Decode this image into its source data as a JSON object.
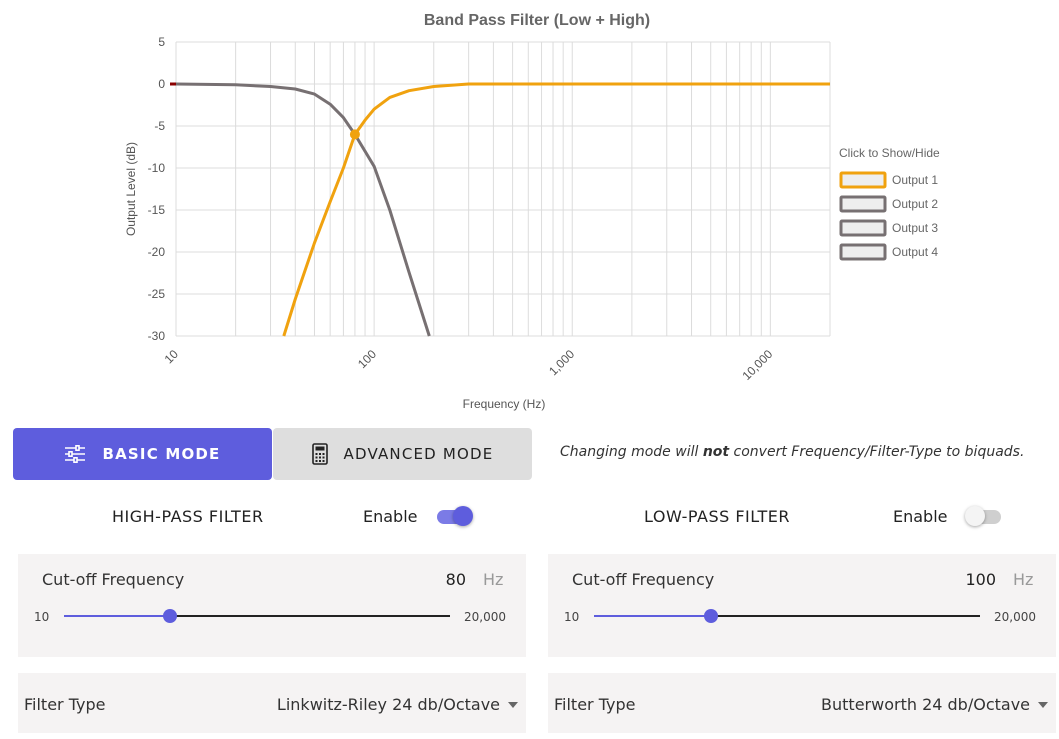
{
  "chart_data": {
    "type": "line",
    "title": "Band Pass Filter (Low + High)",
    "xlabel": "Frequency (Hz)",
    "ylabel": "Output Level (dB)",
    "x_scale": "log",
    "xlim": [
      10,
      20000
    ],
    "ylim": [
      -30,
      5
    ],
    "y_ticks": [
      5,
      0,
      -5,
      -10,
      -15,
      -20,
      -25,
      -30
    ],
    "x_ticks": [
      10,
      100,
      1000,
      10000
    ],
    "x_tick_labels": [
      "10",
      "100",
      "1,000",
      "10,000"
    ],
    "grid": true,
    "legend_position": "right",
    "legend_title": "Click to Show/Hide",
    "series": [
      {
        "name": "Output 1",
        "color": "#f0a20f",
        "active": true,
        "x": [
          35,
          40,
          50,
          60,
          70,
          80,
          90,
          100,
          120,
          150,
          200,
          300,
          1000,
          10000,
          20000
        ],
        "values": [
          -30,
          -25.6,
          -18.9,
          -14.0,
          -10.0,
          -6.0,
          -4.3,
          -3.0,
          -1.6,
          -0.8,
          -0.3,
          0,
          0,
          0,
          0
        ]
      },
      {
        "name": "Output 2",
        "color": "#777072",
        "active": false,
        "x": [
          10,
          20,
          30,
          40,
          50,
          60,
          70,
          80,
          100,
          120,
          150,
          190
        ],
        "values": [
          0,
          -0.1,
          -0.3,
          -0.6,
          -1.2,
          -2.4,
          -4.0,
          -6.0,
          -9.8,
          -15.0,
          -22.4,
          -30
        ]
      },
      {
        "name": "Output 3",
        "color": "#777072",
        "active": false
      },
      {
        "name": "Output 4",
        "color": "#777072",
        "active": false
      }
    ],
    "points": [
      {
        "x": 80,
        "y": -6
      }
    ]
  },
  "modes": {
    "basic_label": "BASIC MODE",
    "advanced_label": "ADVANCED MODE",
    "note_prefix": "Changing mode will ",
    "note_bold": "not",
    "note_suffix": " convert Frequency/Filter-Type to biquads."
  },
  "high_pass": {
    "title": "HIGH-PASS FILTER",
    "enable_label": "Enable",
    "enabled": true,
    "cutoff_label": "Cut-off Frequency",
    "cutoff_value": "80",
    "unit": "Hz",
    "min_label": "10",
    "max_label": "20,000",
    "slider_fraction": 0.275,
    "filter_type_label": "Filter Type",
    "filter_type_value": "Linkwitz-Riley 24 db/Octave"
  },
  "low_pass": {
    "title": "LOW-PASS FILTER",
    "enable_label": "Enable",
    "enabled": false,
    "cutoff_label": "Cut-off Frequency",
    "cutoff_value": "100",
    "unit": "Hz",
    "min_label": "10",
    "max_label": "20,000",
    "slider_fraction": 0.303,
    "filter_type_label": "Filter Type",
    "filter_type_value": "Butterworth 24 db/Octave"
  },
  "colors": {
    "accent": "#5e5ddd",
    "series_active": "#f0a20f",
    "series_inactive": "#777072"
  }
}
